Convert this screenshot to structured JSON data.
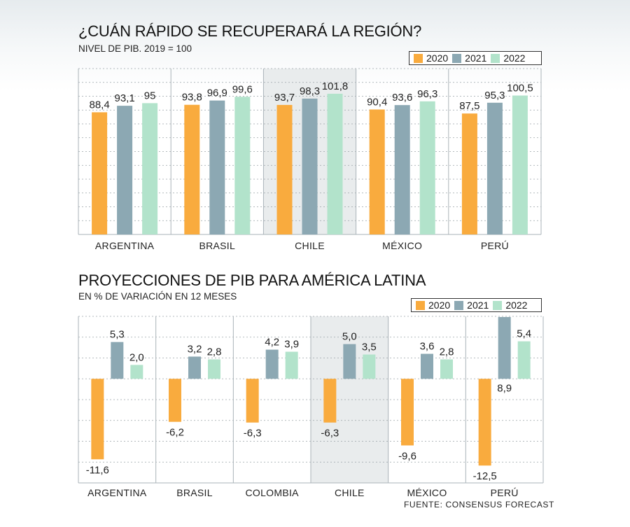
{
  "colors": {
    "2020": "#f9ab3e",
    "2021": "#8ca8b3",
    "2022": "#b2e3cb",
    "highlight": "#e9eced",
    "frame": "#aab3b8"
  },
  "legend": [
    "2020",
    "2021",
    "2022"
  ],
  "chart_data": [
    {
      "type": "bar",
      "title": "¿CUÁN RÁPIDO SE RECUPERARÁ LA REGIÓN?",
      "subtitle": "NIVEL DE PIB. 2019 = 100",
      "categories": [
        "ARGENTINA",
        "BRASIL",
        "CHILE",
        "MÉXICO",
        "PERÚ"
      ],
      "highlight_category": "CHILE",
      "series": [
        {
          "name": "2020",
          "values": [
            88.4,
            93.8,
            93.7,
            90.4,
            87.5
          ],
          "labels": [
            "88,4",
            "93,8",
            "93,7",
            "90,4",
            "87,5"
          ]
        },
        {
          "name": "2021",
          "values": [
            93.1,
            96.9,
            98.3,
            93.6,
            95.3
          ],
          "labels": [
            "93,1",
            "96,9",
            "98,3",
            "93,6",
            "95,3"
          ]
        },
        {
          "name": "2022",
          "values": [
            95,
            99.6,
            101.8,
            96.3,
            100.5
          ],
          "labels": [
            "95",
            "99,6",
            "101,8",
            "96,3",
            "100,5"
          ]
        }
      ],
      "ylim": [
        0,
        120
      ],
      "grid": true
    },
    {
      "type": "bar",
      "title": "PROYECCIONES DE PIB PARA AMÉRICA LATINA",
      "subtitle": "EN % DE VARIACIÓN EN 12 MESES",
      "categories": [
        "ARGENTINA",
        "BRASIL",
        "COLOMBIA",
        "CHILE",
        "MÉXICO",
        "PERÚ"
      ],
      "highlight_category": "CHILE",
      "series": [
        {
          "name": "2020",
          "values": [
            -11.6,
            -6.2,
            -6.3,
            -6.3,
            -9.6,
            -12.5
          ],
          "labels": [
            "-11,6",
            "-6,2",
            "-6,3",
            "-6,3",
            "-9,6",
            "-12,5"
          ]
        },
        {
          "name": "2021",
          "values": [
            5.3,
            3.2,
            4.2,
            5.0,
            3.6,
            8.9
          ],
          "labels": [
            "5,3",
            "3,2",
            "4,2",
            "5,0",
            "3,6",
            "8,9"
          ]
        },
        {
          "name": "2022",
          "values": [
            2.0,
            2.8,
            3.9,
            3.5,
            2.8,
            5.4
          ],
          "labels": [
            "2,0",
            "2,8",
            "3,9",
            "3,5",
            "2,8",
            "5,4"
          ]
        }
      ],
      "ylim": [
        -15,
        9
      ],
      "grid": true
    }
  ],
  "source": "FUENTE: CONSENSUS FORECAST"
}
